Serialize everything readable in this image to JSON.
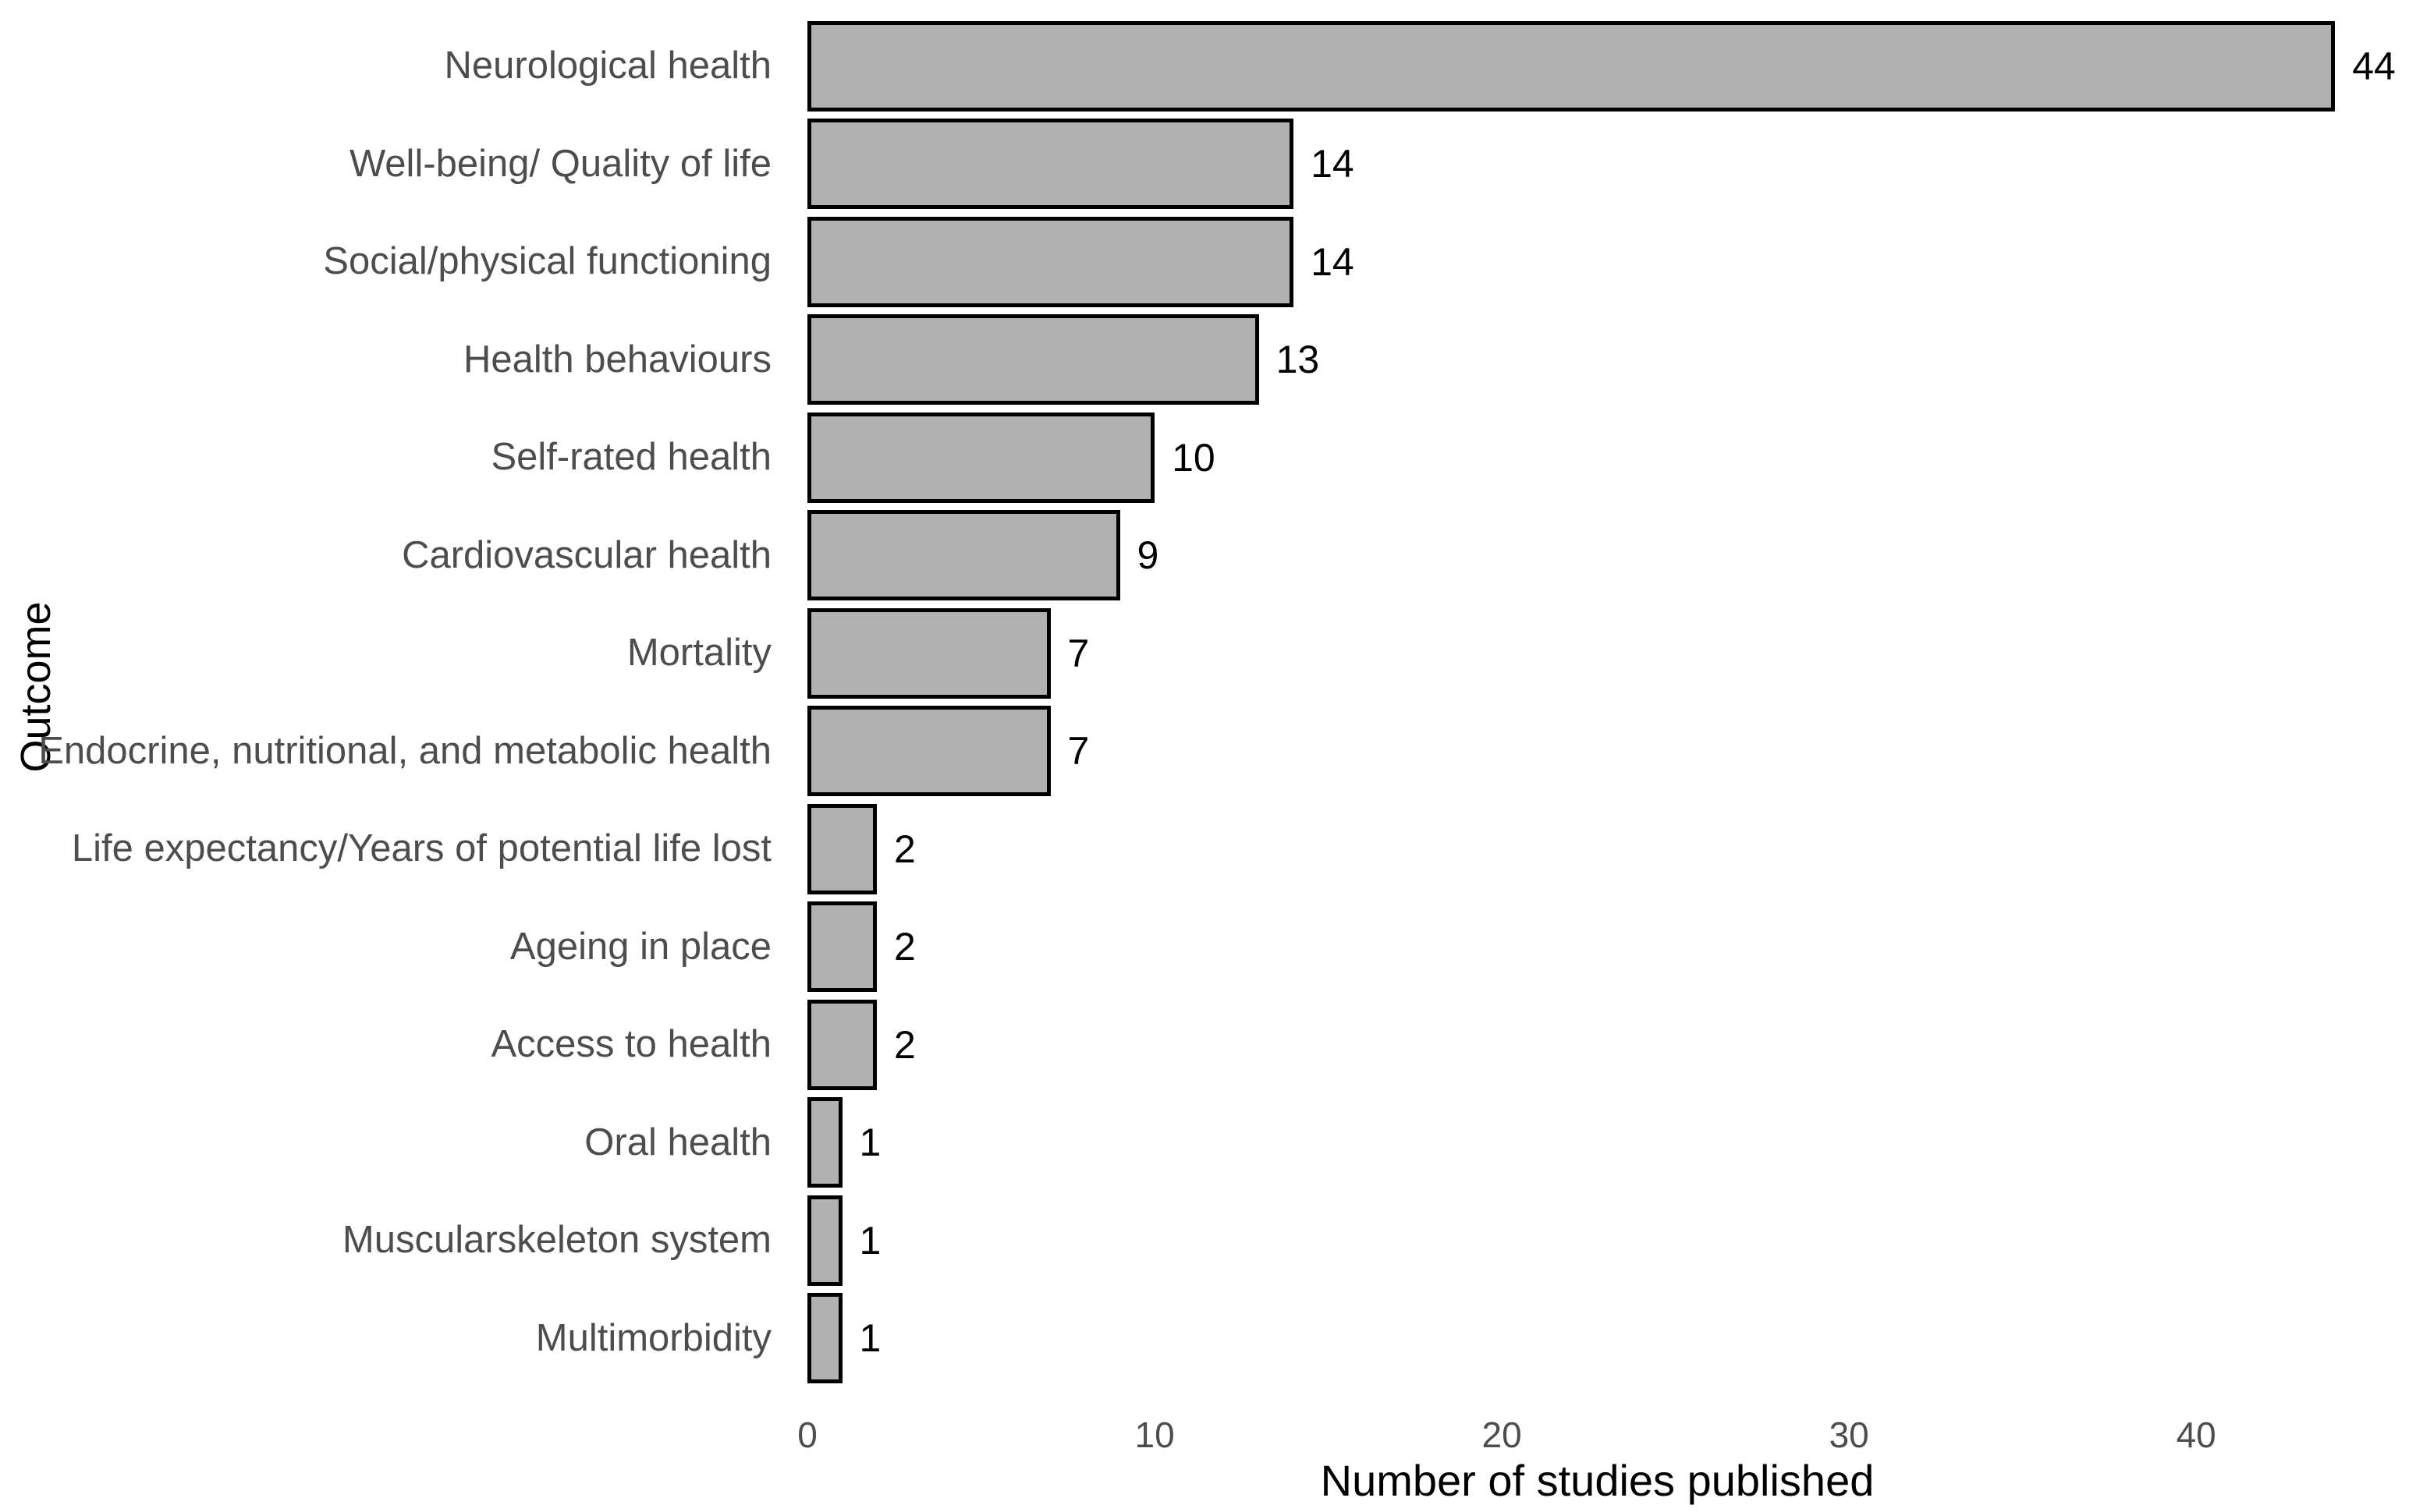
{
  "chart_data": {
    "type": "bar",
    "orientation": "horizontal",
    "title": "",
    "xlabel": "Number of studies published",
    "ylabel": "Outcome",
    "categories": [
      "Neurological health",
      "Well-being/ Quality of life",
      "Social/physical functioning",
      "Health behaviours",
      "Self-rated health",
      "Cardiovascular health",
      "Mortality",
      "Endocrine, nutritional, and metabolic health",
      "Life expectancy/Years of potential life lost",
      "Ageing in place",
      "Access to health",
      "Oral health",
      "Muscularskeleton system",
      "Multimorbidity"
    ],
    "values": [
      44,
      14,
      14,
      13,
      10,
      9,
      7,
      7,
      2,
      2,
      2,
      1,
      1,
      1
    ],
    "xticks": [
      0,
      10,
      20,
      30,
      40
    ],
    "xlim": [
      0,
      45.5
    ],
    "grid": false,
    "legend": "none",
    "value_labels": true,
    "colors": {
      "bar_fill": "#b1b1b1",
      "bar_border": "#000000",
      "axis_text": "#4d4d4d",
      "axis_title": "#000000",
      "background": "#ffffff"
    }
  }
}
